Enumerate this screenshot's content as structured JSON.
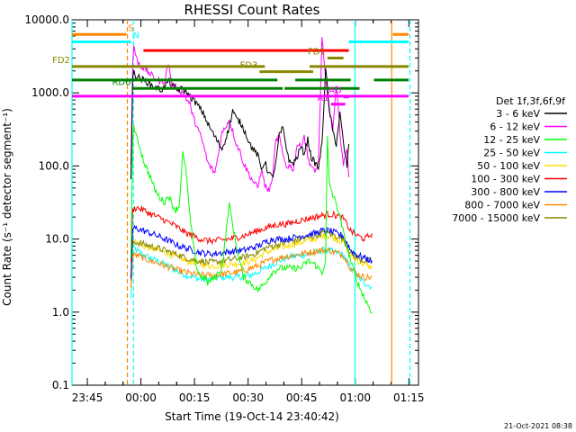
{
  "chart_data": {
    "type": "line",
    "title": "RHESSI Count Rates",
    "xlabel": "Start Time (19-Oct-14 23:40:42)",
    "ylabel": "Count Rate (s⁻¹ detector segment⁻¹)",
    "x_unit": "minutes from start time",
    "xlim": [
      0,
      97
    ],
    "ylim": [
      0.1,
      10000
    ],
    "y_scale": "log",
    "x_ticks": [
      {
        "x": 4.3,
        "label": "23:45"
      },
      {
        "x": 19.3,
        "label": "00:00"
      },
      {
        "x": 34.3,
        "label": "00:15"
      },
      {
        "x": 49.3,
        "label": "00:30"
      },
      {
        "x": 64.3,
        "label": "00:45"
      },
      {
        "x": 79.3,
        "label": "01:00"
      },
      {
        "x": 94.3,
        "label": "01:15"
      }
    ],
    "y_ticks": [
      {
        "y": 0.1,
        "label": "0.1"
      },
      {
        "y": 1,
        "label": "1.0"
      },
      {
        "y": 10,
        "label": "10.0"
      },
      {
        "y": 100,
        "label": "100.0"
      },
      {
        "y": 1000,
        "label": "1000.0"
      },
      {
        "y": 10000,
        "label": "10000.0"
      }
    ],
    "legend_title": "Det 1f,3f,6f,9f",
    "legend_position": "right",
    "grid": false,
    "series": [
      {
        "name": "3 - 6 keV",
        "color": "#000000",
        "x": [
          16.5,
          17,
          17.3,
          18,
          19,
          20,
          21,
          22,
          23,
          24,
          25,
          26,
          27,
          28,
          29,
          30,
          31,
          33,
          35,
          37,
          38,
          40,
          42,
          44,
          45,
          46,
          47,
          48,
          50,
          52,
          53,
          54,
          55,
          56,
          57,
          58,
          59,
          60,
          61,
          62,
          63,
          64,
          65,
          66,
          67,
          68,
          69,
          70,
          71,
          72,
          73,
          74,
          75,
          76,
          77,
          77.5
        ],
        "y": [
          70,
          1500,
          1900,
          1700,
          1600,
          1500,
          1400,
          1300,
          1200,
          1150,
          1100,
          1200,
          1500,
          1250,
          1150,
          1100,
          1150,
          900,
          700,
          500,
          380,
          250,
          170,
          330,
          580,
          440,
          400,
          330,
          190,
          140,
          90,
          115,
          80,
          70,
          100,
          260,
          330,
          180,
          110,
          110,
          130,
          180,
          150,
          230,
          130,
          110,
          95,
          200,
          2200,
          600,
          300,
          200,
          520,
          200,
          100,
          200
        ]
      },
      {
        "name": "6 - 12 keV",
        "color": "#ff00ff",
        "x": [
          16.5,
          17,
          17.3,
          18,
          19,
          20,
          21,
          22,
          23,
          24,
          25,
          26,
          27,
          28,
          29,
          30,
          31,
          33,
          34,
          35,
          37,
          38,
          40,
          42,
          44,
          45,
          46,
          47,
          48,
          50,
          52,
          53,
          54,
          55,
          56,
          57,
          58,
          59,
          60,
          61,
          62,
          63,
          64,
          65,
          66,
          67,
          68,
          69,
          70,
          71,
          72,
          73,
          74,
          75,
          76,
          77,
          77.5
        ],
        "y": [
          100,
          2500,
          4500,
          3000,
          2400,
          2200,
          2000,
          1800,
          1600,
          1500,
          1400,
          1500,
          2600,
          1300,
          1200,
          1100,
          1000,
          700,
          450,
          350,
          180,
          110,
          80,
          280,
          430,
          300,
          200,
          160,
          110,
          70,
          50,
          90,
          55,
          45,
          60,
          210,
          260,
          140,
          100,
          100,
          90,
          200,
          180,
          260,
          130,
          100,
          80,
          120,
          5500,
          1500,
          600,
          300,
          1200,
          300,
          100,
          180,
          70
        ]
      },
      {
        "name": "12 - 25 keV",
        "color": "#00ff00",
        "x": [
          16.5,
          17,
          17.3,
          18,
          19,
          20,
          21,
          22,
          23,
          24,
          25,
          26,
          27,
          28,
          29,
          30,
          31,
          32,
          33,
          34,
          35,
          36,
          37,
          38,
          40,
          42,
          44,
          46,
          48,
          50,
          52,
          54,
          56,
          58,
          60,
          62,
          64,
          66,
          68,
          70,
          71,
          71.5,
          72,
          73,
          74,
          75,
          76,
          78,
          80,
          82,
          84
        ],
        "y": [
          5,
          250,
          350,
          250,
          180,
          120,
          90,
          70,
          50,
          40,
          35,
          32,
          40,
          30,
          25,
          28,
          150,
          80,
          20,
          8,
          4,
          3,
          3,
          2.5,
          3,
          4,
          30,
          8,
          3,
          2.5,
          2,
          2.5,
          3.5,
          4,
          4,
          4,
          4,
          5,
          4.5,
          3.5,
          5,
          250,
          60,
          40,
          30,
          20,
          12,
          5,
          2.5,
          1.5,
          1
        ]
      },
      {
        "name": "25 - 50 keV",
        "color": "#00ffff",
        "x": [
          16.5,
          17,
          18,
          20,
          22,
          24,
          26,
          28,
          30,
          32,
          34,
          36,
          38,
          40,
          42,
          44,
          46,
          48,
          50,
          52,
          54,
          56,
          58,
          60,
          62,
          64,
          66,
          68,
          70,
          72,
          74,
          76,
          78,
          80,
          82,
          84
        ],
        "y": [
          1.5,
          8,
          7,
          6,
          5.5,
          5,
          4.5,
          4,
          3.5,
          3.2,
          3,
          2.8,
          2.8,
          2.9,
          3,
          3,
          3,
          3.1,
          3.2,
          3.5,
          4,
          4.5,
          5,
          5.5,
          5.8,
          6,
          6.2,
          6.5,
          7,
          7,
          6.5,
          6,
          4,
          3,
          2.5,
          2.2
        ]
      },
      {
        "name": "50 - 100 keV",
        "color": "#ffdd00",
        "x": [
          16.5,
          17,
          18,
          20,
          22,
          24,
          26,
          28,
          30,
          32,
          34,
          36,
          38,
          40,
          42,
          44,
          46,
          48,
          50,
          52,
          54,
          56,
          58,
          60,
          62,
          64,
          66,
          68,
          70,
          72,
          74,
          76,
          78,
          80,
          82,
          84
        ],
        "y": [
          2,
          10,
          9,
          8,
          7.5,
          7,
          6.5,
          6,
          5.5,
          5,
          4.8,
          4.5,
          4.3,
          4.3,
          4.4,
          4.5,
          4.6,
          4.7,
          5,
          5.5,
          6.5,
          7,
          7.5,
          8,
          8.5,
          9,
          9.5,
          10,
          11,
          11,
          10,
          9,
          6,
          5,
          4.5,
          4
        ]
      },
      {
        "name": "100 - 300 keV",
        "color": "#ff0000",
        "x": [
          16.5,
          17,
          18,
          20,
          22,
          24,
          26,
          28,
          30,
          32,
          34,
          36,
          38,
          40,
          42,
          44,
          46,
          48,
          50,
          52,
          54,
          56,
          58,
          60,
          62,
          64,
          66,
          68,
          70,
          72,
          74,
          76,
          78,
          80,
          82,
          84
        ],
        "y": [
          5,
          25,
          27,
          25,
          22,
          20,
          18,
          16,
          14,
          12,
          11,
          10,
          9.5,
          9.5,
          9.8,
          10,
          10.5,
          11,
          12,
          13,
          14,
          15,
          16,
          16,
          17,
          18,
          19,
          20,
          21,
          22,
          21,
          19,
          13,
          11,
          10,
          12
        ]
      },
      {
        "name": "300 - 800 keV",
        "color": "#0000ff",
        "x": [
          16.5,
          17,
          18,
          20,
          22,
          24,
          26,
          28,
          30,
          32,
          34,
          36,
          38,
          40,
          42,
          44,
          46,
          48,
          50,
          52,
          54,
          56,
          58,
          60,
          62,
          64,
          66,
          68,
          70,
          72,
          74,
          76,
          78,
          80,
          82,
          84
        ],
        "y": [
          3,
          14,
          14,
          13,
          12,
          11,
          10,
          9,
          8,
          7.5,
          7,
          6.5,
          6.3,
          6.3,
          6.5,
          6.7,
          6.9,
          7,
          7.5,
          8,
          9,
          10,
          10,
          10,
          10.5,
          11,
          11.5,
          12,
          13,
          13,
          12,
          11,
          7,
          6,
          5.5,
          5
        ]
      },
      {
        "name": "800 - 7000 keV",
        "color": "#ff8800",
        "x": [
          16.5,
          17,
          18,
          20,
          22,
          24,
          26,
          28,
          30,
          32,
          34,
          36,
          38,
          40,
          42,
          44,
          46,
          48,
          50,
          52,
          54,
          56,
          58,
          60,
          62,
          64,
          66,
          68,
          70,
          72,
          74,
          76,
          78,
          80,
          82,
          84
        ],
        "y": [
          2,
          6,
          6,
          5.5,
          5,
          4.7,
          4.3,
          4,
          3.7,
          3.5,
          3.3,
          3.2,
          3.2,
          3.2,
          3.3,
          3.4,
          3.5,
          3.7,
          4,
          4.3,
          4.8,
          5.2,
          5.5,
          5.8,
          6,
          6.2,
          6.5,
          6.8,
          7,
          7,
          6.5,
          6,
          4,
          3.3,
          3,
          3
        ]
      },
      {
        "name": "7000 - 15000 keV",
        "color": "#888800",
        "x": [
          16.5,
          17,
          18,
          20,
          22,
          24,
          26,
          28,
          30,
          32,
          34,
          36,
          38,
          40,
          42,
          44,
          46,
          48,
          50,
          52,
          54,
          56,
          58,
          60,
          62,
          64,
          66,
          68,
          70,
          72,
          74,
          76,
          78,
          80,
          82,
          84
        ],
        "y": [
          2.5,
          9,
          9,
          8.5,
          8,
          7.5,
          7,
          6.5,
          6,
          5.5,
          5.2,
          5,
          4.8,
          4.8,
          5,
          5.2,
          5.4,
          5.6,
          6,
          6.5,
          7.5,
          8,
          8.5,
          9,
          9.5,
          10,
          10.5,
          11,
          12,
          12,
          11,
          10,
          6.5,
          5.5,
          5,
          5
        ]
      }
    ],
    "intervals": [
      {
        "label": "S",
        "color": "#ff8800",
        "y": 6300,
        "x": [
          0,
          15.2
        ]
      },
      {
        "label": "",
        "color": "#ff8800",
        "y": 6300,
        "x": [
          89.8,
          94.2
        ]
      },
      {
        "label": "N",
        "color": "#00ffff",
        "y": 5000,
        "x": [
          0,
          16.5
        ]
      },
      {
        "label": "",
        "color": "#00ffff",
        "y": 5000,
        "x": [
          77.5,
          94.2
        ]
      },
      {
        "label": "",
        "color": "#ff0000",
        "y": 3800,
        "x": [
          20,
          77.5
        ]
      },
      {
        "label": "FD1",
        "color": "#888800",
        "y": 3000,
        "x": [
          71.5,
          76
        ]
      },
      {
        "label": "FD2",
        "color": "#888800",
        "y": 2300,
        "x": [
          0,
          54
        ]
      },
      {
        "label": "",
        "color": "#888800",
        "y": 2300,
        "x": [
          66.5,
          94.2
        ]
      },
      {
        "label": "FD3",
        "color": "#888800",
        "y": 1950,
        "x": [
          52.5,
          67.5
        ]
      },
      {
        "label": "",
        "color": "#008000",
        "y": 1500,
        "x": [
          0,
          57.5
        ]
      },
      {
        "label": "",
        "color": "#008000",
        "y": 1500,
        "x": [
          62.5,
          78
        ]
      },
      {
        "label": "",
        "color": "#008000",
        "y": 1500,
        "x": [
          84.5,
          94.2
        ]
      },
      {
        "label": "RD6",
        "color": "#008000",
        "y": 1150,
        "x": [
          17,
          59
        ]
      },
      {
        "label": "",
        "color": "#008000",
        "y": 1150,
        "x": [
          59.5,
          80.5
        ]
      },
      {
        "label": "",
        "color": "#ff00ff",
        "y": 900,
        "x": [
          0,
          94.2
        ]
      },
      {
        "label": "AO",
        "color": "#ff00ff",
        "y": 880,
        "x": [
          76,
          77.5
        ]
      },
      {
        "label": "A1",
        "color": "#ff00ff",
        "y": 700,
        "x": [
          72.5,
          76.5
        ]
      }
    ],
    "vertical_markers": [
      {
        "x": 0,
        "color": "#00ffff",
        "style": "solid"
      },
      {
        "x": 15.5,
        "color": "#ff8800",
        "style": "dashed"
      },
      {
        "x": 17.2,
        "color": "#00ffff",
        "style": "dashed"
      },
      {
        "x": 79.2,
        "color": "#00ffff",
        "style": "solid"
      },
      {
        "x": 89.5,
        "color": "#ff8800",
        "style": "solid"
      },
      {
        "x": 94.6,
        "color": "#00ffff",
        "style": "dashed"
      }
    ]
  },
  "footer": {
    "timestamp": "21-Oct-2021 08:38"
  }
}
